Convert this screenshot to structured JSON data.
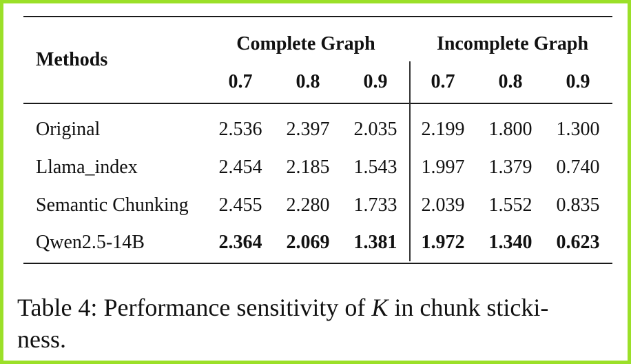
{
  "table": {
    "methods_header": "Methods",
    "groups": [
      {
        "label": "Complete Graph",
        "ks": [
          "0.7",
          "0.8",
          "0.9"
        ]
      },
      {
        "label": "Incomplete Graph",
        "ks": [
          "0.7",
          "0.8",
          "0.9"
        ]
      }
    ],
    "rows": [
      {
        "method": "Original",
        "bold": false,
        "values": [
          "2.536",
          "2.397",
          "2.035",
          "2.199",
          "1.800",
          "1.300"
        ]
      },
      {
        "method": "Llama_index",
        "bold": false,
        "values": [
          "2.454",
          "2.185",
          "1.543",
          "1.997",
          "1.379",
          "0.740"
        ]
      },
      {
        "method": "Semantic Chunking",
        "bold": false,
        "values": [
          "2.455",
          "2.280",
          "1.733",
          "2.039",
          "1.552",
          "0.835"
        ]
      },
      {
        "method": "Qwen2.5-14B",
        "bold": true,
        "values": [
          "2.364",
          "2.069",
          "1.381",
          "1.972",
          "1.340",
          "0.623"
        ]
      }
    ]
  },
  "caption": {
    "prefix": "Table 4: Performance sensitivity of ",
    "variable": "K",
    "suffix": " in chunk sticki-",
    "line2": "ness."
  },
  "colors": {
    "frame": "#9be028"
  }
}
